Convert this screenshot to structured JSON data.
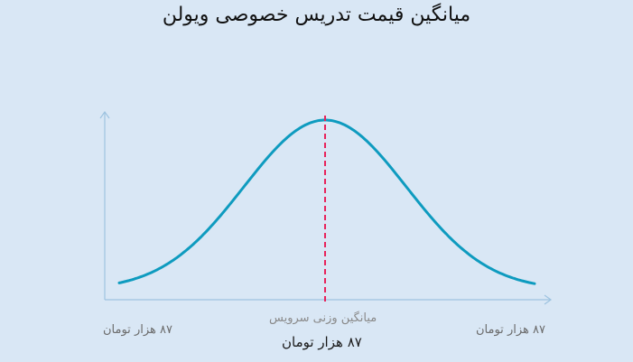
{
  "chart_data": {
    "type": "line",
    "title": "میانگین قیمت تدریس خصوصی ویولن",
    "xlabel": "",
    "ylabel": "",
    "curve": "normal-distribution",
    "mean_caption": "میانگین وزنی سرویس",
    "min_label": "۸۷ هزار تومان",
    "mean_label": "۸۷ هزار تومان",
    "max_label": "۸۷ هزار تومان",
    "grid": false,
    "legend": "none",
    "colors": {
      "curve": "#0e9bbf",
      "mean_line": "#e8235a",
      "axis": "#9ec3e0",
      "background": "#d9e7f5"
    }
  }
}
